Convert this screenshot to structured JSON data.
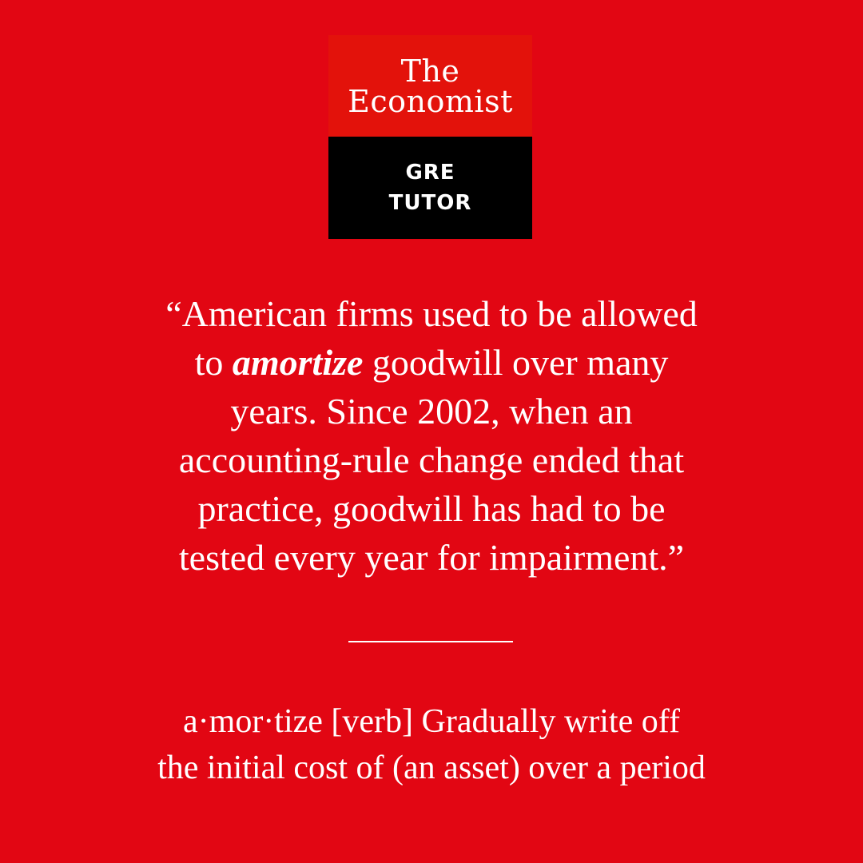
{
  "colors": {
    "background": "#e20613",
    "logo_top": "#e3120b",
    "logo_bottom": "#000000",
    "text": "#ffffff"
  },
  "logo": {
    "brand_line1": "The",
    "brand_line2": "Economist",
    "sub_line1": "GRE",
    "sub_line2": "TUTOR"
  },
  "quote": {
    "line1": "“American firms used to be allowed",
    "line2_before": "to ",
    "keyword": "amortize",
    "line2_after": " goodwill over many",
    "line3": "years. Since 2002, when an",
    "line4": "accounting-rule change ended that",
    "line5": "practice, goodwill has had to be",
    "line6": "tested every year for impairment.”"
  },
  "definition": {
    "line1": "a·mor·tize [verb] Gradually write off",
    "line2": "the initial cost of (an asset) over a period"
  }
}
